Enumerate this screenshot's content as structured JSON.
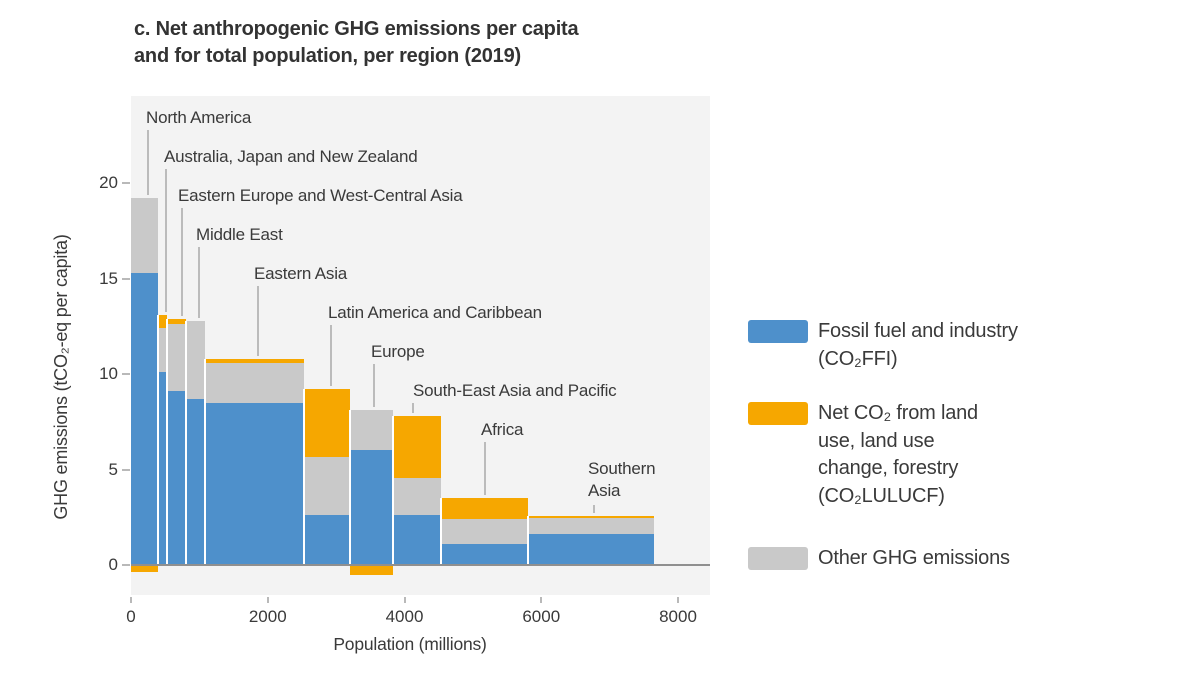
{
  "header": {
    "title": "c. Net anthropogenic GHG emissions per capita\nand for total population, per region (2019)"
  },
  "chart_data": {
    "type": "bar",
    "subtype": "variable-width stacked bars (Marimekko), bar width = population, bar height = per-capita emissions",
    "title": "c. Net anthropogenic GHG emissions per capita and for total population, per region (2019)",
    "xlabel": "Population (millions)",
    "ylabel": "GHG emissions (tCO₂-eq per capita)",
    "xlim": [
      0,
      8470
    ],
    "ylim": [
      -1.5,
      24.5
    ],
    "xticks": [
      0,
      2000,
      4000,
      6000,
      8000
    ],
    "yticks": [
      0,
      5,
      10,
      15,
      20
    ],
    "grid": false,
    "legend_position": "right of plot",
    "stack_order": [
      "ffi",
      "other_ghg",
      "lulucf (negative values drawn below zero)"
    ],
    "regions": [
      {
        "name": "North America",
        "population_millions": 390,
        "ffi": 15.3,
        "other_ghg": 3.9,
        "lulucf": -0.35,
        "net_total": 18.85
      },
      {
        "name": "Australia, Japan and New Zealand",
        "population_millions": 140,
        "ffi": 10.1,
        "other_ghg": 2.3,
        "lulucf": 0.7,
        "net_total": 13.1
      },
      {
        "name": "Eastern Europe and West-Central Asia",
        "population_millions": 270,
        "ffi": 9.1,
        "other_ghg": 3.5,
        "lulucf": 0.3,
        "net_total": 12.9
      },
      {
        "name": "Middle East",
        "population_millions": 280,
        "ffi": 8.7,
        "other_ghg": 4.1,
        "lulucf": 0.0,
        "net_total": 12.8
      },
      {
        "name": "Eastern Asia",
        "population_millions": 1450,
        "ffi": 8.5,
        "other_ghg": 2.1,
        "lulucf": 0.2,
        "net_total": 10.8
      },
      {
        "name": "Latin America and Caribbean",
        "population_millions": 680,
        "ffi": 2.6,
        "other_ghg": 3.05,
        "lulucf": 3.55,
        "net_total": 9.2
      },
      {
        "name": "Europe",
        "population_millions": 620,
        "ffi": 6.0,
        "other_ghg": 2.1,
        "lulucf": -0.5,
        "net_total": 7.6
      },
      {
        "name": "South-East Asia and Pacific",
        "population_millions": 700,
        "ffi": 2.6,
        "other_ghg": 1.95,
        "lulucf": 3.25,
        "net_total": 7.8
      },
      {
        "name": "Africa",
        "population_millions": 1270,
        "ffi": 1.1,
        "other_ghg": 1.3,
        "lulucf": 1.1,
        "net_total": 3.5
      },
      {
        "name": "Southern Asia",
        "population_millions": 1850,
        "ffi": 1.6,
        "other_ghg": 0.85,
        "lulucf": 0.1,
        "net_total": 2.55
      }
    ]
  },
  "axes": {
    "ylabel": "GHG emissions (tCO₂-eq per capita)",
    "xlabel": "Population (millions)"
  },
  "legend": {
    "items": [
      {
        "key": "ffi",
        "label": "Fossil fuel and industry\n(CO₂FFI)",
        "color": "#4e90cb"
      },
      {
        "key": "lulucf",
        "label": "Net CO₂ from land\nuse, land use\nchange, forestry\n(CO₂LULUCF)",
        "color": "#f6a700"
      },
      {
        "key": "other",
        "label": "Other GHG emissions",
        "color": "#c9c9c9"
      }
    ]
  },
  "colors": {
    "ffi": "#4e90cb",
    "lulucf": "#f6a700",
    "other_ghg": "#c9c9c9",
    "plot_background": "#f3f3f3",
    "zero_line": "#8f8f8f",
    "leader_line": "#bbbbbb",
    "text": "#3a3a3a"
  }
}
